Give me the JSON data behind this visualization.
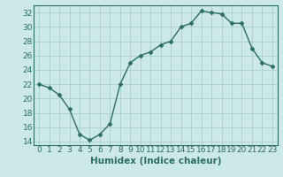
{
  "x_values": [
    0,
    1,
    2,
    3,
    4,
    5,
    6,
    7,
    8,
    9,
    10,
    11,
    12,
    13,
    14,
    15,
    16,
    17,
    18,
    19,
    20,
    21,
    22,
    23
  ],
  "y_values": [
    22,
    21.5,
    20.5,
    18.5,
    15,
    14.2,
    15,
    16.5,
    22,
    25,
    26,
    26.5,
    27.5,
    28,
    30,
    30.5,
    32.2,
    32,
    31.8,
    30.5,
    30.5,
    27,
    25,
    24.5
  ],
  "line_color": "#2d6e63",
  "marker": "D",
  "marker_size": 2.5,
  "background_color": "#cce8e8",
  "grid_color": "#aacfcf",
  "xlabel": "Humidex (Indice chaleur)",
  "ylim": [
    13.5,
    33.0
  ],
  "xlim": [
    -0.5,
    23.5
  ],
  "yticks": [
    14,
    16,
    18,
    20,
    22,
    24,
    26,
    28,
    30,
    32
  ],
  "xticks": [
    0,
    1,
    2,
    3,
    4,
    5,
    6,
    7,
    8,
    9,
    10,
    11,
    12,
    13,
    14,
    15,
    16,
    17,
    18,
    19,
    20,
    21,
    22,
    23
  ],
  "font_color": "#2d6e63",
  "font_size": 6.5,
  "xlabel_fontsize": 7.5,
  "linewidth": 1.0
}
